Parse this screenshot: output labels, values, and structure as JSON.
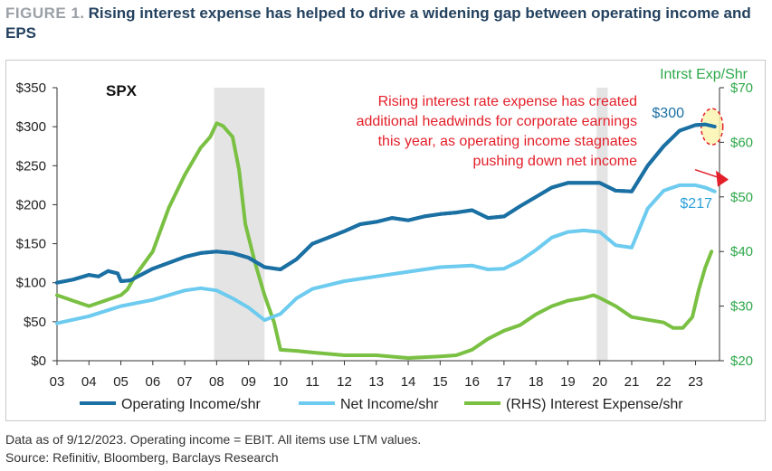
{
  "figure": {
    "label": "FIGURE 1.",
    "title": "Rising interest expense has helped to drive a widening gap between operating income and EPS"
  },
  "footer": {
    "note": "Data as of 9/12/2023. Operating income = EBIT. All items use LTM values.",
    "source": "Source: Refinitiv, Bloomberg, Barclays Research"
  },
  "chart_data": {
    "type": "line",
    "chart_label": "SPX",
    "y2label": "Intrst Exp/Shr",
    "ylim": [
      0,
      350
    ],
    "y2lim": [
      20,
      70
    ],
    "xlim": [
      2003,
      2023.75
    ],
    "y_ticks": [
      "$0",
      "$50",
      "$100",
      "$150",
      "$200",
      "$250",
      "$300",
      "$350"
    ],
    "y2_ticks": [
      "$20",
      "$30",
      "$40",
      "$50",
      "$60",
      "$70"
    ],
    "x_ticks": [
      "03",
      "04",
      "05",
      "06",
      "07",
      "08",
      "09",
      "10",
      "11",
      "12",
      "13",
      "14",
      "15",
      "16",
      "17",
      "18",
      "19",
      "20",
      "21",
      "22",
      "23"
    ],
    "recessions": [
      [
        2007.92,
        2009.5
      ],
      [
        2019.9,
        2020.25
      ]
    ],
    "annotation": "Rising interest rate expense has created additional headwinds for corporate earnings this year, as operating income stagnates pushing down net income",
    "data_labels": {
      "operating_income_last": "$300",
      "net_income_last": "$217"
    },
    "colors": {
      "operating": "#1a6fa3",
      "net": "#6ccbef",
      "interest": "#7ac043",
      "annotation": "#e3202a",
      "recession": "#e4e4e4",
      "highlight_fill": "#fbf4b0",
      "highlight_stroke": "#e3202a",
      "arrow": "#e3202a"
    },
    "series": [
      {
        "name": "Operating Income/shr",
        "axis": "left",
        "x": [
          2003,
          2003.5,
          2004,
          2004.3,
          2004.6,
          2004.9,
          2005,
          2005.3,
          2006,
          2007,
          2007.5,
          2008,
          2008.5,
          2009,
          2009.5,
          2010,
          2010.5,
          2011,
          2011.5,
          2012,
          2012.5,
          2013,
          2013.5,
          2014,
          2014.5,
          2015,
          2015.5,
          2016,
          2016.5,
          2017,
          2017.5,
          2018,
          2018.5,
          2019,
          2019.5,
          2020,
          2020.5,
          2021,
          2021.5,
          2022,
          2022.5,
          2023,
          2023.3,
          2023.6
        ],
        "y": [
          100,
          104,
          110,
          108,
          115,
          112,
          102,
          103,
          118,
          133,
          138,
          140,
          138,
          132,
          120,
          117,
          130,
          150,
          158,
          166,
          175,
          178,
          183,
          180,
          185,
          188,
          190,
          193,
          183,
          185,
          198,
          210,
          222,
          228,
          228,
          228,
          218,
          217,
          250,
          275,
          295,
          302,
          303,
          300
        ]
      },
      {
        "name": "Net Income/shr",
        "axis": "left",
        "x": [
          2003,
          2004,
          2005,
          2006,
          2007,
          2007.5,
          2008,
          2008.5,
          2009,
          2009.5,
          2010,
          2010.5,
          2011,
          2012,
          2013,
          2014,
          2015,
          2016,
          2016.5,
          2017,
          2017.5,
          2018,
          2018.5,
          2019,
          2019.5,
          2020,
          2020.5,
          2021,
          2021.5,
          2022,
          2022.5,
          2023,
          2023.3,
          2023.6
        ],
        "y": [
          48,
          57,
          70,
          78,
          90,
          93,
          90,
          80,
          68,
          52,
          60,
          80,
          92,
          102,
          108,
          114,
          120,
          122,
          117,
          118,
          128,
          142,
          158,
          165,
          167,
          165,
          148,
          145,
          195,
          218,
          225,
          225,
          222,
          217
        ]
      },
      {
        "name": "(RHS) Interest Expense/shr",
        "axis": "right",
        "x": [
          2003,
          2003.5,
          2004,
          2004.5,
          2005,
          2005.2,
          2005.5,
          2006,
          2006.5,
          2007,
          2007.5,
          2007.8,
          2008,
          2008.2,
          2008.5,
          2008.7,
          2008.9,
          2009.2,
          2009.5,
          2009.8,
          2010,
          2010.5,
          2011,
          2012,
          2013,
          2014,
          2015,
          2015.5,
          2016,
          2016.5,
          2017,
          2017.5,
          2018,
          2018.5,
          2019,
          2019.5,
          2019.8,
          2020,
          2020.5,
          2021,
          2021.5,
          2022,
          2022.3,
          2022.6,
          2022.9,
          2023.1,
          2023.3,
          2023.5
        ],
        "y": [
          32,
          31,
          30,
          31,
          32,
          33,
          36,
          40,
          48,
          54,
          59,
          61,
          63.5,
          63,
          61,
          55,
          45,
          38,
          32,
          27,
          22,
          21.8,
          21.5,
          21,
          21,
          20.5,
          20.8,
          21,
          22,
          24,
          25.5,
          26.5,
          28.5,
          30,
          31,
          31.5,
          32,
          31.5,
          30,
          28,
          27.5,
          27,
          26,
          26,
          28,
          33,
          37,
          40
        ]
      }
    ]
  }
}
